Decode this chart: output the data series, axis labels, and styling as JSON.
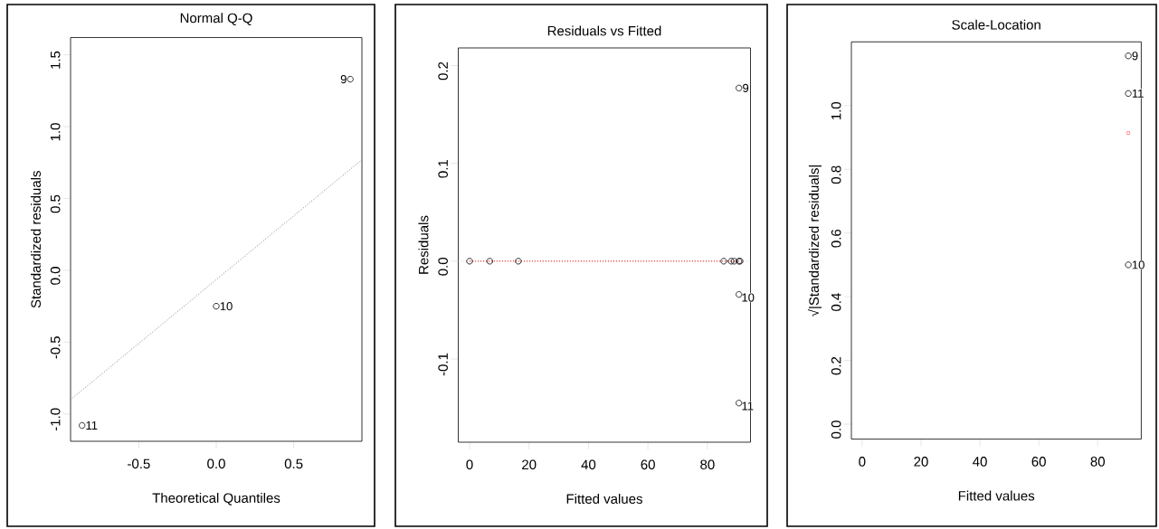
{
  "chart_data": [
    {
      "type": "scatter",
      "title": "Normal Q-Q",
      "xlabel": "Theoretical Quantiles",
      "ylabel": "Standardized residuals",
      "xlim": [
        -0.94,
        0.94
      ],
      "ylim": [
        -1.19,
        1.62
      ],
      "xticks": [
        {
          "value": -0.5,
          "label": "-0.5"
        },
        {
          "value": 0,
          "label": "0.0"
        },
        {
          "value": 0.5,
          "label": "0.5"
        }
      ],
      "yticks": [
        {
          "value": -1,
          "label": "-1.0"
        },
        {
          "value": -0.5,
          "label": "-0.5"
        },
        {
          "value": 0,
          "label": "0.0"
        },
        {
          "value": 0.5,
          "label": "0.5"
        },
        {
          "value": 1,
          "label": "1.0"
        },
        {
          "value": 1.5,
          "label": "1.5"
        }
      ],
      "series": [
        {
          "color": "#000000",
          "marker": "circle",
          "x": [
            -0.866,
            0,
            0.865
          ],
          "values": [
            -1.08,
            -0.25,
            1.33
          ]
        },
        {
          "type": "line",
          "color": "#808080",
          "line_style": "dotted",
          "x": [
            -0.94,
            0.94
          ],
          "values": [
            -0.9,
            0.77
          ]
        }
      ],
      "annotations": [
        {
          "text": "11",
          "x": -0.866,
          "y": -1.08
        },
        {
          "text": "10",
          "x": 0,
          "y": -0.25
        },
        {
          "text": "9",
          "x": 0.865,
          "y": 1.33
        }
      ]
    },
    {
      "type": "scatter",
      "title": "Residuals vs Fitted",
      "xlabel": "Fitted values",
      "ylabel": "Residuals",
      "xlim": [
        -3.8,
        94.5
      ],
      "ylim": [
        -0.185,
        0.218
      ],
      "xticks": [
        0,
        20,
        40,
        60,
        80
      ],
      "yticks": [
        {
          "value": -0.1,
          "label": "-0.1"
        },
        {
          "value": 0,
          "label": "0.0"
        },
        {
          "value": 0.1,
          "label": "0.1"
        },
        {
          "value": 0.2,
          "label": "0.2"
        }
      ],
      "ref_lines": [
        {
          "axis": "y",
          "value": 0,
          "color": "#bebebe",
          "line_style": "dotted"
        }
      ],
      "series": [
        {
          "color": "#000000",
          "marker": "circle",
          "x": [
            0,
            6.8,
            16.4,
            85.5,
            88,
            89,
            90.6,
            91,
            90.6,
            90.6,
            90.6
          ],
          "values": [
            0,
            0,
            0,
            0,
            0,
            0,
            0,
            0,
            0.177,
            -0.034,
            -0.145
          ]
        },
        {
          "type": "line",
          "color": "#ff0000",
          "line_style": "dotted",
          "x": [
            0,
            91
          ],
          "values": [
            0,
            0
          ]
        }
      ],
      "annotations": [
        {
          "text": "9",
          "x": 90.6,
          "y": 0.177
        },
        {
          "text": "10",
          "x": 90.6,
          "y": -0.034
        },
        {
          "text": "11",
          "x": 90.6,
          "y": -0.145
        }
      ]
    },
    {
      "type": "scatter",
      "title": "Scale-Location",
      "xlabel": "Fitted values",
      "ylabel": "√|Standardized residuals|",
      "xlim": [
        -3.65,
        94.8
      ],
      "ylim": [
        -0.047,
        1.2
      ],
      "xticks": [
        0,
        20,
        40,
        60,
        80
      ],
      "yticks": [
        {
          "value": 0,
          "label": "0.0"
        },
        {
          "value": 0.2,
          "label": "0.2"
        },
        {
          "value": 0.4,
          "label": "0.4"
        },
        {
          "value": 0.6,
          "label": "0.6"
        },
        {
          "value": 0.8,
          "label": "0.8"
        },
        {
          "value": 1,
          "label": "1.0"
        }
      ],
      "series": [
        {
          "color": "#000000",
          "marker": "circle",
          "x": [
            90.4,
            90.4,
            90.4
          ],
          "values": [
            1.156,
            1.038,
            0.5
          ]
        },
        {
          "color": "#ff0000",
          "marker": "square",
          "x": [
            90.4
          ],
          "values": [
            0.914
          ]
        }
      ],
      "annotations": [
        {
          "text": "9",
          "x": 90.4,
          "y": 1.156
        },
        {
          "text": "11",
          "x": 90.4,
          "y": 1.038
        },
        {
          "text": "10",
          "x": 90.4,
          "y": 0.5
        }
      ]
    }
  ]
}
